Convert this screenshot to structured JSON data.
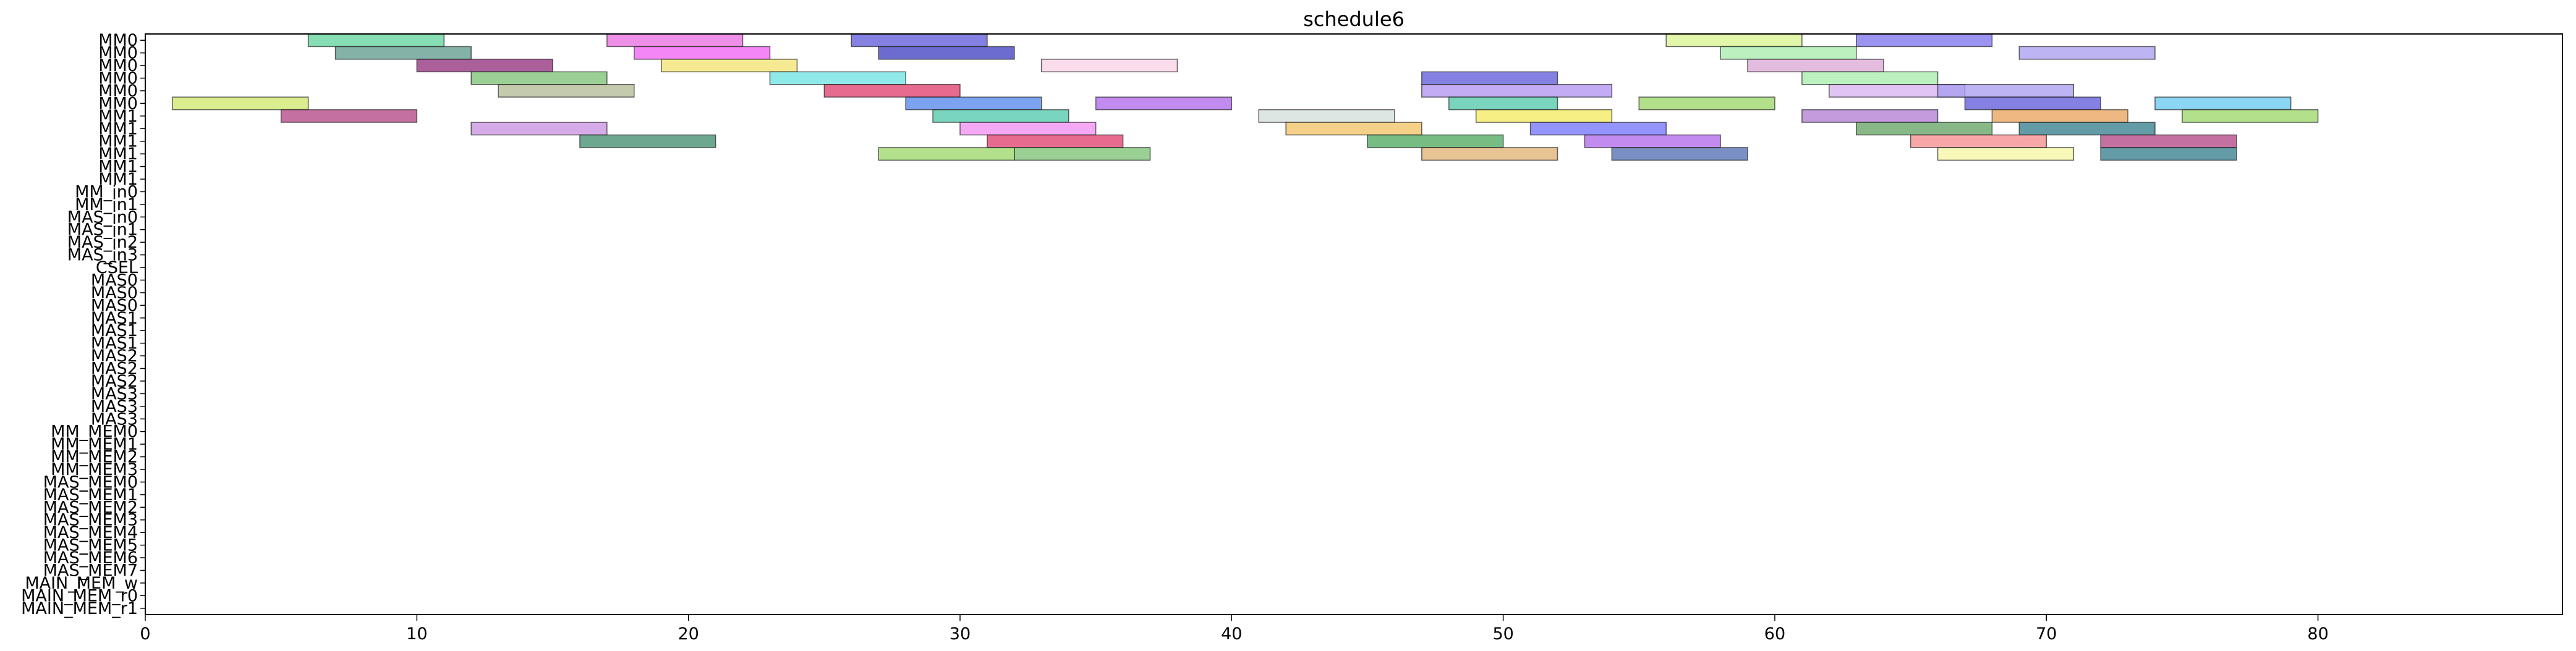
{
  "chart_data": {
    "type": "gantt",
    "title": "schedule6",
    "xlabel": "",
    "ylabel": "",
    "xlim": [
      0,
      89
    ],
    "xticks": [
      "0",
      "10",
      "20",
      "30",
      "40",
      "50",
      "60",
      "70",
      "80"
    ],
    "grid": false,
    "rows": [
      "MM0",
      "MM0",
      "MM0",
      "MM0",
      "MM0",
      "MM0",
      "MM1",
      "MM1",
      "MM1",
      "MM1",
      "MM1",
      "MM1",
      "MM_in0",
      "MM_in1",
      "MAS_in0",
      "MAS_in1",
      "MAS_in2",
      "MAS_in3",
      "CSEL",
      "MAS0",
      "MAS0",
      "MAS0",
      "MAS1",
      "MAS1",
      "MAS1",
      "MAS2",
      "MAS2",
      "MAS2",
      "MAS3",
      "MAS3",
      "MAS3",
      "MM_MEM0",
      "MM_MEM1",
      "MM_MEM2",
      "MM_MEM3",
      "MAS_MEM0",
      "MAS_MEM1",
      "MAS_MEM2",
      "MAS_MEM3",
      "MAS_MEM4",
      "MAS_MEM5",
      "MAS_MEM6",
      "MAS_MEM7",
      "MAIN_MEM_w",
      "MAIN_MEM_r0",
      "MAIN_MEM_r1"
    ],
    "palette": [
      "#5fd39b",
      "#e86be0",
      "#5b57d8",
      "#d8f48e",
      "#a79bf0",
      "#cfe86a",
      "#5a9a8a",
      "#f25ef2",
      "#3b3bbf",
      "#a3ecaa",
      "#8f2a7a",
      "#f1e36e",
      "#d9a6d4",
      "#6be2e2",
      "#df3a6a",
      "#4f84ea",
      "#ad64ea",
      "#4ec7aa",
      "#d2ded8",
      "#f28cf2",
      "#f3e95a",
      "#8b3a5a",
      "#4aa55a",
      "#f0c060",
      "#7a70ec",
      "#64c8f0",
      "#3d8a6a",
      "#e8a05a",
      "#2f7a8a",
      "#f58a8a",
      "#9ad664",
      "#b04080",
      "#62e38a",
      "#4e6ab0",
      "#c09a3e",
      "#d05858",
      "#88b0e8",
      "#e8c2e8",
      "#f5f5a0",
      "#60a060",
      "#e0e050",
      "#a040c0",
      "#40c0c0",
      "#ff7070",
      "#70ff70",
      "#7070ff"
    ],
    "tasks": [
      {
        "row": 0,
        "start": 6.0,
        "end": 11.0,
        "color": "#5fd39b"
      },
      {
        "row": 0,
        "start": 17.0,
        "end": 22.0,
        "color": "#e86be0"
      },
      {
        "row": 0,
        "start": 26.0,
        "end": 31.0,
        "color": "#5b57d8"
      },
      {
        "row": 0,
        "start": 56.0,
        "end": 61.0,
        "color": "#d8f48e"
      },
      {
        "row": 0,
        "start": 63.0,
        "end": 68.0,
        "color": "#7a70ec"
      },
      {
        "row": 1,
        "start": 7.0,
        "end": 12.0,
        "color": "#5a9a8a"
      },
      {
        "row": 1,
        "start": 18.0,
        "end": 23.0,
        "color": "#f25ef2"
      },
      {
        "row": 1,
        "start": 27.0,
        "end": 32.0,
        "color": "#3b3bbf"
      },
      {
        "row": 1,
        "start": 58.0,
        "end": 63.0,
        "color": "#a3ecaa"
      },
      {
        "row": 1,
        "start": 69.0,
        "end": 74.0,
        "color": "#a79bf0"
      },
      {
        "row": 2,
        "start": 10.0,
        "end": 15.0,
        "color": "#8f2a7a"
      },
      {
        "row": 2,
        "start": 19.0,
        "end": 24.0,
        "color": "#f1e36e"
      },
      {
        "row": 2,
        "start": 33.0,
        "end": 38.0,
        "color": "#f9d0e6"
      },
      {
        "row": 2,
        "start": 59.0,
        "end": 64.0,
        "color": "#d9a6d4"
      },
      {
        "row": 3,
        "start": 12.0,
        "end": 17.0,
        "color": "#7ac070"
      },
      {
        "row": 3,
        "start": 23.0,
        "end": 28.0,
        "color": "#6be2e2"
      },
      {
        "row": 3,
        "start": 47.0,
        "end": 52.0,
        "color": "#5b57d8"
      },
      {
        "row": 3,
        "start": 61.0,
        "end": 66.0,
        "color": "#a3ecaa"
      },
      {
        "row": 4,
        "start": 13.0,
        "end": 18.0,
        "color": "#b0b890"
      },
      {
        "row": 4,
        "start": 25.0,
        "end": 30.0,
        "color": "#df3a6a"
      },
      {
        "row": 4,
        "start": 47.0,
        "end": 54.0,
        "color": "#b090f0"
      },
      {
        "row": 4,
        "start": 62.0,
        "end": 67.0,
        "color": "#d8b0f0"
      },
      {
        "row": 4,
        "start": 66.0,
        "end": 71.0,
        "color": "#a79bf0"
      },
      {
        "row": 5,
        "start": 1.0,
        "end": 6.0,
        "color": "#cfe86a"
      },
      {
        "row": 5,
        "start": 28.0,
        "end": 33.0,
        "color": "#4f84ea"
      },
      {
        "row": 5,
        "start": 35.0,
        "end": 40.0,
        "color": "#ad64ea"
      },
      {
        "row": 5,
        "start": 48.0,
        "end": 52.0,
        "color": "#4ec7aa"
      },
      {
        "row": 5,
        "start": 55.0,
        "end": 60.0,
        "color": "#9ad664"
      },
      {
        "row": 5,
        "start": 67.0,
        "end": 72.0,
        "color": "#5b57d8"
      },
      {
        "row": 5,
        "start": 74.0,
        "end": 79.0,
        "color": "#64c8f0"
      },
      {
        "row": 6,
        "start": 5.0,
        "end": 10.0,
        "color": "#b04080"
      },
      {
        "row": 6,
        "start": 29.0,
        "end": 34.0,
        "color": "#4ec7aa"
      },
      {
        "row": 6,
        "start": 41.0,
        "end": 46.0,
        "color": "#d2ded8"
      },
      {
        "row": 6,
        "start": 49.0,
        "end": 54.0,
        "color": "#f3e95a"
      },
      {
        "row": 6,
        "start": 61.0,
        "end": 66.0,
        "color": "#b07ad0"
      },
      {
        "row": 6,
        "start": 68.0,
        "end": 73.0,
        "color": "#e8a05a"
      },
      {
        "row": 6,
        "start": 75.0,
        "end": 80.0,
        "color": "#9ad664"
      },
      {
        "row": 7,
        "start": 12.0,
        "end": 17.0,
        "color": "#c890e0"
      },
      {
        "row": 7,
        "start": 30.0,
        "end": 35.0,
        "color": "#f28cf2"
      },
      {
        "row": 7,
        "start": 42.0,
        "end": 47.0,
        "color": "#f0c060"
      },
      {
        "row": 7,
        "start": 51.0,
        "end": 56.0,
        "color": "#7070ff"
      },
      {
        "row": 7,
        "start": 63.0,
        "end": 68.0,
        "color": "#60a060"
      },
      {
        "row": 7,
        "start": 69.0,
        "end": 74.0,
        "color": "#2f7a8a"
      },
      {
        "row": 8,
        "start": 16.0,
        "end": 21.0,
        "color": "#3d8a6a"
      },
      {
        "row": 8,
        "start": 31.0,
        "end": 36.0,
        "color": "#df3a6a"
      },
      {
        "row": 8,
        "start": 45.0,
        "end": 50.0,
        "color": "#4aa55a"
      },
      {
        "row": 8,
        "start": 53.0,
        "end": 58.0,
        "color": "#ad64ea"
      },
      {
        "row": 8,
        "start": 65.0,
        "end": 70.0,
        "color": "#f58a8a"
      },
      {
        "row": 8,
        "start": 72.0,
        "end": 77.0,
        "color": "#b04080"
      },
      {
        "row": 9,
        "start": 27.0,
        "end": 32.0,
        "color": "#9ad664"
      },
      {
        "row": 9,
        "start": 32.0,
        "end": 37.0,
        "color": "#7ac070"
      },
      {
        "row": 9,
        "start": 47.0,
        "end": 52.0,
        "color": "#e0b070"
      },
      {
        "row": 9,
        "start": 54.0,
        "end": 59.0,
        "color": "#4e6ab0"
      },
      {
        "row": 9,
        "start": 66.0,
        "end": 71.0,
        "color": "#f5f5a0"
      },
      {
        "row": 9,
        "start": 72.0,
        "end": 77.0,
        "color": "#2f7a8a"
      }
    ]
  }
}
